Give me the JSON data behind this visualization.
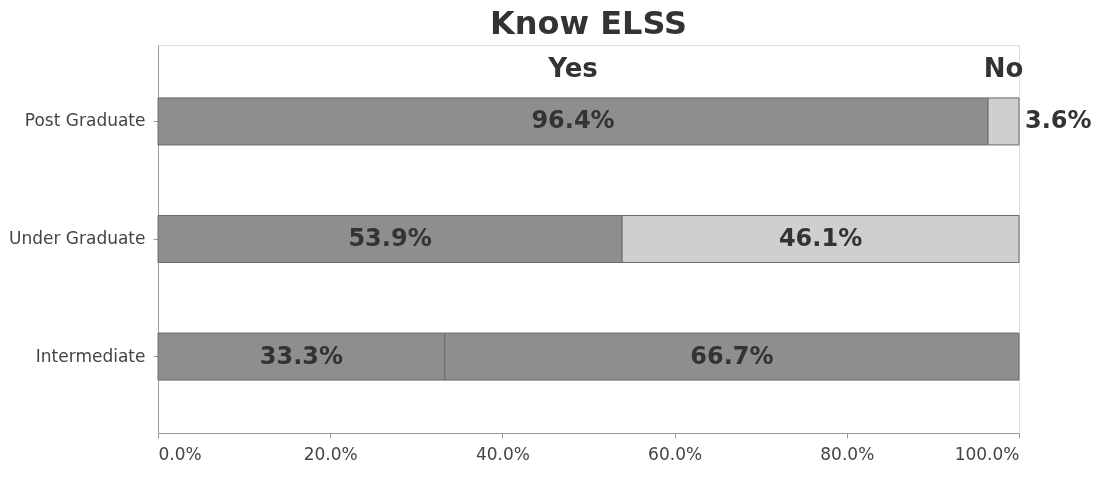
{
  "chart_data": {
    "type": "bar",
    "title": "Know ELSS",
    "orientation": "horizontal",
    "stacked": true,
    "categories": [
      "Post Graduate",
      "Under Graduate",
      "Intermediate"
    ],
    "series": [
      {
        "name": "Yes",
        "color": "#8e8e8e",
        "values": [
          96.4,
          53.9,
          33.3
        ],
        "value_labels": [
          "96.4%",
          "53.9%",
          "33.3%"
        ]
      },
      {
        "name": "No",
        "color": "#cfcfcf",
        "colors": [
          null,
          null,
          "#8e8e8e"
        ],
        "values": [
          3.6,
          46.1,
          66.7
        ],
        "value_labels": [
          "3.6%",
          "46.1%",
          "66.7%"
        ]
      }
    ],
    "xlim": [
      0,
      100
    ],
    "xticks": [
      {
        "value": 0,
        "label": "0.0%"
      },
      {
        "value": 20,
        "label": "20.0%"
      },
      {
        "value": 40,
        "label": "40.0%"
      },
      {
        "value": 60,
        "label": "60.0%"
      },
      {
        "value": 80,
        "label": "80.0%"
      },
      {
        "value": 100,
        "label": "100.0%"
      }
    ],
    "grid": false,
    "legend": false
  }
}
